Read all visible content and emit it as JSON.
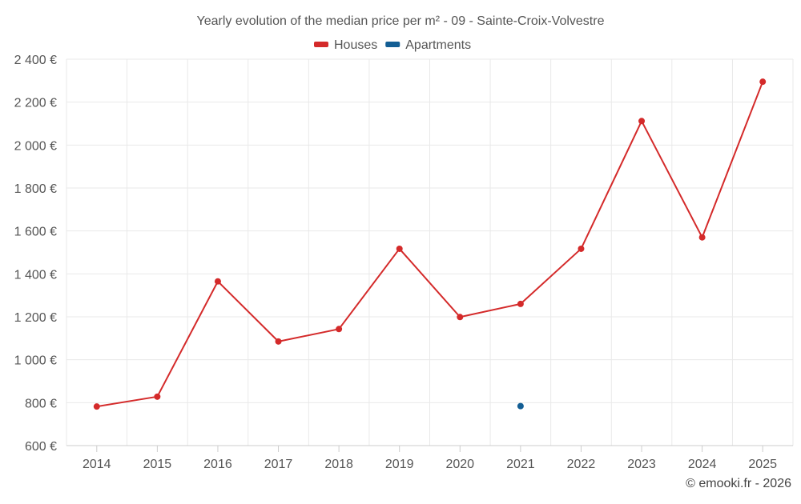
{
  "chart_data": {
    "type": "line",
    "title": "Yearly evolution of the median price per m² - 09 - Sainte-Croix-Volvestre",
    "xlabel": "",
    "ylabel": "",
    "categories": [
      "2014",
      "2015",
      "2016",
      "2017",
      "2018",
      "2019",
      "2020",
      "2021",
      "2022",
      "2023",
      "2024",
      "2025"
    ],
    "ylim": [
      600,
      2400
    ],
    "yticks": [
      600,
      800,
      1000,
      1200,
      1400,
      1600,
      1800,
      2000,
      2200,
      2400
    ],
    "ytick_labels": [
      "600 €",
      "800 €",
      "1 000 €",
      "1 200 €",
      "1 400 €",
      "1 600 €",
      "1 800 €",
      "2 000 €",
      "2 200 €",
      "2 400 €"
    ],
    "grid": true,
    "legend_position": "top-center",
    "series": [
      {
        "name": "Houses",
        "color": "#d42a2a",
        "values": [
          782,
          828,
          1365,
          1085,
          1143,
          1517,
          1199,
          1260,
          1517,
          2112,
          1570,
          2295
        ]
      },
      {
        "name": "Apartments",
        "color": "#135e94",
        "values": [
          null,
          null,
          null,
          null,
          null,
          null,
          null,
          784,
          null,
          null,
          null,
          null
        ]
      }
    ]
  },
  "credit": "© emooki.fr - 2026"
}
